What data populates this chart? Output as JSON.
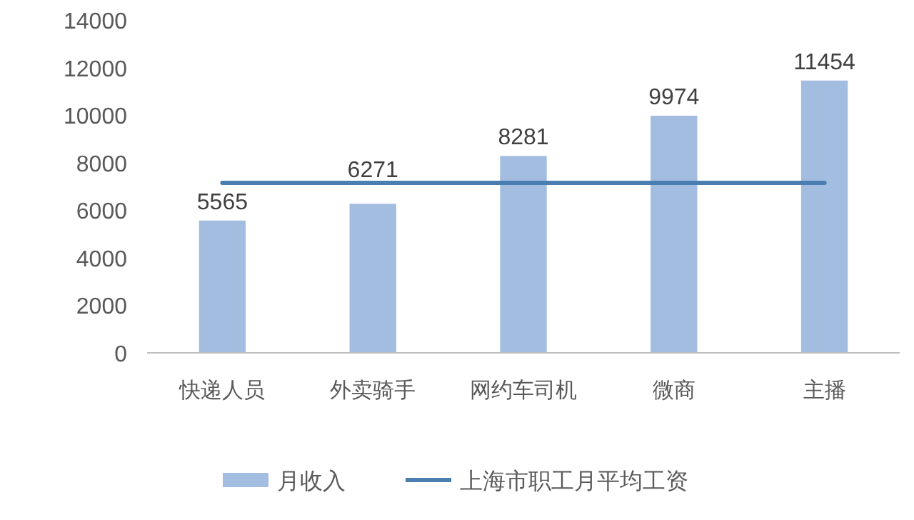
{
  "chart_data": {
    "type": "bar",
    "categories": [
      "快递人员",
      "外卖骑手",
      "网约车司机",
      "微商",
      "主播"
    ],
    "ylim": [
      0,
      14000
    ],
    "yticks": [
      0,
      2000,
      4000,
      6000,
      8000,
      10000,
      12000,
      14000
    ],
    "legend": "bottom",
    "series": [
      {
        "name": "月收入",
        "color": "#a3bde0",
        "values": [
          5565,
          6271,
          8281,
          9974,
          11454
        ],
        "value_labels": [
          "5565",
          "6271",
          "8281",
          "9974",
          "11454"
        ]
      },
      {
        "name": "上海市职工月平均工资",
        "type": "line",
        "color": "#4a7eb0",
        "values": [
          7150,
          7150,
          7150,
          7150,
          7150
        ]
      }
    ]
  }
}
